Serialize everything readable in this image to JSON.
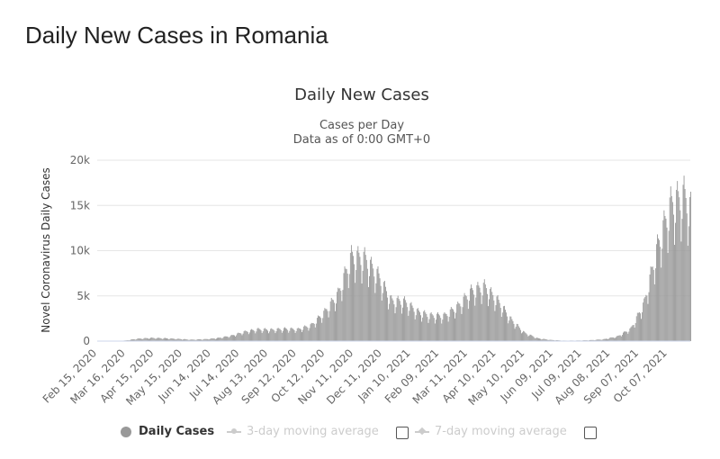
{
  "page": {
    "title": "Daily New Cases in Romania"
  },
  "chart_data": {
    "type": "bar",
    "title": "Daily New Cases",
    "subtitle_line1": "Cases per Day",
    "subtitle_line2": "Data as of 0:00 GMT+0",
    "ylabel": "Novel Coronavirus Daily Cases",
    "xlabel": "",
    "ylim": [
      0,
      20000
    ],
    "yticks": [
      0,
      5000,
      10000,
      15000,
      20000
    ],
    "ytick_labels": [
      "0",
      "5k",
      "10k",
      "15k",
      "20k"
    ],
    "xlim": [
      "2020-02-15",
      "2021-10-31"
    ],
    "x_tick_labels": [
      "Feb 15, 2020",
      "Mar 16, 2020",
      "Apr 15, 2020",
      "May 15, 2020",
      "Jun 14, 2020",
      "Jul 14, 2020",
      "Aug 13, 2020",
      "Sep 12, 2020",
      "Oct 12, 2020",
      "Nov 11, 2020",
      "Dec 11, 2020",
      "Jan 10, 2021",
      "Feb 09, 2021",
      "Mar 11, 2021",
      "Apr 10, 2021",
      "May 10, 2021",
      "Jun 09, 2021",
      "Jul 09, 2021",
      "Aug 08, 2021",
      "Sep 07, 2021",
      "Oct 07, 2021"
    ],
    "grid": true,
    "series": [
      {
        "name": "Daily Cases",
        "color": "#999999",
        "weekly_average": [
          {
            "week_of": "2020-02-15",
            "value": 0
          },
          {
            "week_of": "2020-03-01",
            "value": 5
          },
          {
            "week_of": "2020-03-15",
            "value": 60
          },
          {
            "week_of": "2020-03-29",
            "value": 260
          },
          {
            "week_of": "2020-04-12",
            "value": 340
          },
          {
            "week_of": "2020-04-26",
            "value": 300
          },
          {
            "week_of": "2020-05-10",
            "value": 230
          },
          {
            "week_of": "2020-05-24",
            "value": 150
          },
          {
            "week_of": "2020-06-07",
            "value": 200
          },
          {
            "week_of": "2020-06-21",
            "value": 330
          },
          {
            "week_of": "2020-07-05",
            "value": 580
          },
          {
            "week_of": "2020-07-19",
            "value": 1000
          },
          {
            "week_of": "2020-08-02",
            "value": 1250
          },
          {
            "week_of": "2020-08-16",
            "value": 1200
          },
          {
            "week_of": "2020-08-30",
            "value": 1300
          },
          {
            "week_of": "2020-09-13",
            "value": 1250
          },
          {
            "week_of": "2020-09-27",
            "value": 1700
          },
          {
            "week_of": "2020-10-11",
            "value": 3100
          },
          {
            "week_of": "2020-10-25",
            "value": 5000
          },
          {
            "week_of": "2020-11-08",
            "value": 9000
          },
          {
            "week_of": "2020-11-22",
            "value": 8800
          },
          {
            "week_of": "2020-12-06",
            "value": 7000
          },
          {
            "week_of": "2020-12-20",
            "value": 4300
          },
          {
            "week_of": "2021-01-03",
            "value": 4200
          },
          {
            "week_of": "2021-01-17",
            "value": 3100
          },
          {
            "week_of": "2021-01-31",
            "value": 2700
          },
          {
            "week_of": "2021-02-14",
            "value": 2700
          },
          {
            "week_of": "2021-02-28",
            "value": 3700
          },
          {
            "week_of": "2021-03-14",
            "value": 5300
          },
          {
            "week_of": "2021-03-28",
            "value": 5800
          },
          {
            "week_of": "2021-04-11",
            "value": 4300
          },
          {
            "week_of": "2021-04-25",
            "value": 2300
          },
          {
            "week_of": "2021-05-09",
            "value": 900
          },
          {
            "week_of": "2021-05-23",
            "value": 300
          },
          {
            "week_of": "2021-06-06",
            "value": 120
          },
          {
            "week_of": "2021-06-20",
            "value": 50
          },
          {
            "week_of": "2021-07-04",
            "value": 60
          },
          {
            "week_of": "2021-07-18",
            "value": 100
          },
          {
            "week_of": "2021-08-01",
            "value": 200
          },
          {
            "week_of": "2021-08-15",
            "value": 500
          },
          {
            "week_of": "2021-08-29",
            "value": 1300
          },
          {
            "week_of": "2021-09-12",
            "value": 4000
          },
          {
            "week_of": "2021-09-26",
            "value": 10000
          },
          {
            "week_of": "2021-10-10",
            "value": 14500
          },
          {
            "week_of": "2021-10-24",
            "value": 15500
          },
          {
            "week_of": "2021-10-31",
            "value": 14000
          }
        ]
      }
    ],
    "legend": [
      {
        "label": "Daily Cases",
        "active": true
      },
      {
        "label": "3-day moving average",
        "active": false
      },
      {
        "label": "7-day moving average",
        "active": false
      }
    ]
  }
}
